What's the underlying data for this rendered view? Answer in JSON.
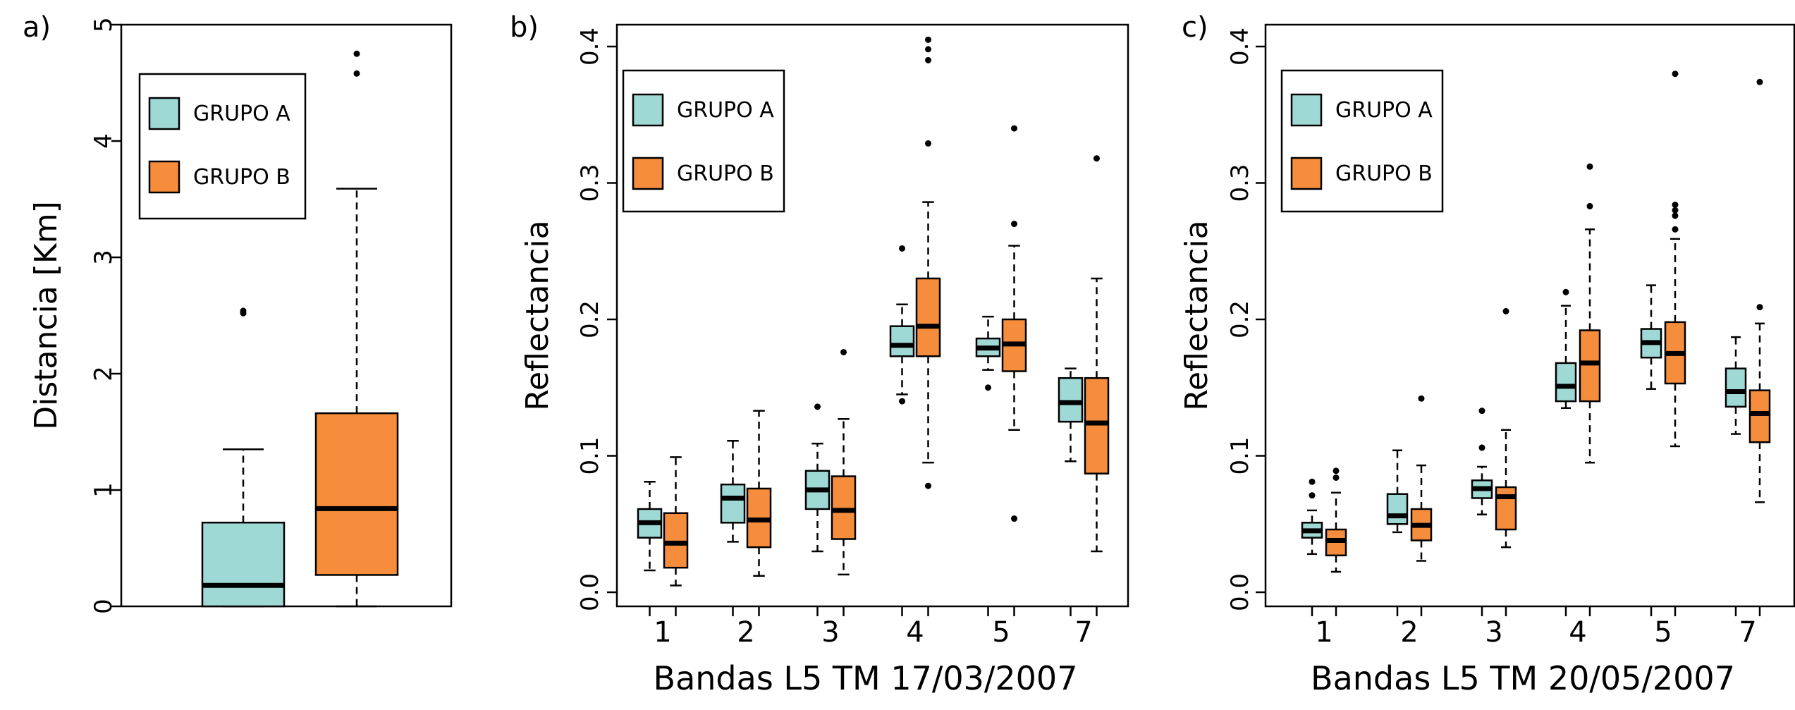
{
  "colors": {
    "group_a": "#9fd9d6",
    "group_b": "#f68d3c",
    "axis": "#000000"
  },
  "legend_labels": [
    "GRUPO A",
    "GRUPO B"
  ],
  "chart_data": [
    {
      "type": "box",
      "panel_label": "a)",
      "ylabel": "Distancia [Km]",
      "xlabel": "",
      "ylim": [
        0,
        5
      ],
      "yticks": [
        "0",
        "1",
        "2",
        "3",
        "4",
        "5"
      ],
      "legend_position": "top-left",
      "categories": [],
      "series": [
        {
          "name": "GRUPO A",
          "boxes": [
            {
              "whisker_low": 0,
              "q1": 0,
              "median": 0.18,
              "q3": 0.72,
              "whisker_high": 1.35,
              "outliers": [
                2.52,
                2.54
              ]
            }
          ]
        },
        {
          "name": "GRUPO B",
          "boxes": [
            {
              "whisker_low": 0,
              "q1": 0.27,
              "median": 0.84,
              "q3": 1.66,
              "whisker_high": 3.59,
              "outliers": [
                4.58,
                4.75
              ]
            }
          ]
        }
      ]
    },
    {
      "type": "box",
      "panel_label": "b)",
      "ylabel": "Reflectancia",
      "xlabel": "Bandas L5 TM 17/03/2007",
      "ylim": [
        0,
        0.4
      ],
      "yticks": [
        "0.0",
        "0.1",
        "0.2",
        "0.3",
        "0.4"
      ],
      "legend_position": "top-left",
      "categories": [
        "1",
        "2",
        "3",
        "4",
        "5",
        "7"
      ],
      "series": [
        {
          "name": "GRUPO A",
          "boxes": [
            {
              "whisker_low": 0.016,
              "q1": 0.04,
              "median": 0.051,
              "q3": 0.061,
              "whisker_high": 0.081,
              "outliers": []
            },
            {
              "whisker_low": 0.037,
              "q1": 0.051,
              "median": 0.069,
              "q3": 0.079,
              "whisker_high": 0.111,
              "outliers": []
            },
            {
              "whisker_low": 0.03,
              "q1": 0.061,
              "median": 0.075,
              "q3": 0.089,
              "whisker_high": 0.109,
              "outliers": [
                0.136
              ]
            },
            {
              "whisker_low": 0.145,
              "q1": 0.173,
              "median": 0.181,
              "q3": 0.195,
              "whisker_high": 0.211,
              "outliers": [
                0.14,
                0.252
              ]
            },
            {
              "whisker_low": 0.163,
              "q1": 0.173,
              "median": 0.179,
              "q3": 0.186,
              "whisker_high": 0.202,
              "outliers": [
                0.15
              ]
            },
            {
              "whisker_low": 0.096,
              "q1": 0.125,
              "median": 0.139,
              "q3": 0.157,
              "whisker_high": 0.164,
              "outliers": []
            }
          ]
        },
        {
          "name": "GRUPO B",
          "boxes": [
            {
              "whisker_low": 0.005,
              "q1": 0.018,
              "median": 0.036,
              "q3": 0.058,
              "whisker_high": 0.099,
              "outliers": []
            },
            {
              "whisker_low": 0.012,
              "q1": 0.033,
              "median": 0.053,
              "q3": 0.076,
              "whisker_high": 0.133,
              "outliers": []
            },
            {
              "whisker_low": 0.013,
              "q1": 0.039,
              "median": 0.06,
              "q3": 0.085,
              "whisker_high": 0.127,
              "outliers": [
                0.176
              ]
            },
            {
              "whisker_low": 0.095,
              "q1": 0.173,
              "median": 0.195,
              "q3": 0.23,
              "whisker_high": 0.286,
              "outliers": [
                0.078,
                0.329,
                0.39,
                0.398,
                0.405
              ]
            },
            {
              "whisker_low": 0.119,
              "q1": 0.162,
              "median": 0.182,
              "q3": 0.2,
              "whisker_high": 0.254,
              "outliers": [
                0.054,
                0.27,
                0.34
              ]
            },
            {
              "whisker_low": 0.03,
              "q1": 0.087,
              "median": 0.124,
              "q3": 0.157,
              "whisker_high": 0.23,
              "outliers": [
                0.318
              ]
            }
          ]
        }
      ]
    },
    {
      "type": "box",
      "panel_label": "c)",
      "ylabel": "Reflectancia",
      "xlabel": "Bandas L5 TM 20/05/2007",
      "ylim": [
        0,
        0.4
      ],
      "yticks": [
        "0.0",
        "0.1",
        "0.2",
        "0.3",
        "0.4"
      ],
      "legend_position": "top-left",
      "categories": [
        "1",
        "2",
        "3",
        "4",
        "5",
        "7"
      ],
      "series": [
        {
          "name": "GRUPO A",
          "boxes": [
            {
              "whisker_low": 0.028,
              "q1": 0.04,
              "median": 0.045,
              "q3": 0.051,
              "whisker_high": 0.06,
              "outliers": [
                0.071,
                0.081
              ]
            },
            {
              "whisker_low": 0.044,
              "q1": 0.05,
              "median": 0.056,
              "q3": 0.072,
              "whisker_high": 0.104,
              "outliers": []
            },
            {
              "whisker_low": 0.057,
              "q1": 0.069,
              "median": 0.076,
              "q3": 0.082,
              "whisker_high": 0.092,
              "outliers": [
                0.106,
                0.133
              ]
            },
            {
              "whisker_low": 0.135,
              "q1": 0.14,
              "median": 0.151,
              "q3": 0.168,
              "whisker_high": 0.21,
              "outliers": [
                0.22
              ]
            },
            {
              "whisker_low": 0.149,
              "q1": 0.172,
              "median": 0.183,
              "q3": 0.193,
              "whisker_high": 0.225,
              "outliers": []
            },
            {
              "whisker_low": 0.116,
              "q1": 0.136,
              "median": 0.147,
              "q3": 0.164,
              "whisker_high": 0.187,
              "outliers": []
            }
          ]
        },
        {
          "name": "GRUPO B",
          "boxes": [
            {
              "whisker_low": 0.015,
              "q1": 0.027,
              "median": 0.038,
              "q3": 0.046,
              "whisker_high": 0.073,
              "outliers": [
                0.084,
                0.089
              ]
            },
            {
              "whisker_low": 0.023,
              "q1": 0.038,
              "median": 0.049,
              "q3": 0.061,
              "whisker_high": 0.093,
              "outliers": [
                0.142
              ]
            },
            {
              "whisker_low": 0.033,
              "q1": 0.046,
              "median": 0.07,
              "q3": 0.077,
              "whisker_high": 0.119,
              "outliers": [
                0.206
              ]
            },
            {
              "whisker_low": 0.095,
              "q1": 0.14,
              "median": 0.168,
              "q3": 0.192,
              "whisker_high": 0.266,
              "outliers": [
                0.283,
                0.312
              ]
            },
            {
              "whisker_low": 0.107,
              "q1": 0.153,
              "median": 0.175,
              "q3": 0.198,
              "whisker_high": 0.259,
              "outliers": [
                0.266,
                0.276,
                0.28,
                0.284,
                0.38
              ]
            },
            {
              "whisker_low": 0.066,
              "q1": 0.11,
              "median": 0.131,
              "q3": 0.148,
              "whisker_high": 0.197,
              "outliers": [
                0.209,
                0.374
              ]
            }
          ]
        }
      ]
    }
  ]
}
